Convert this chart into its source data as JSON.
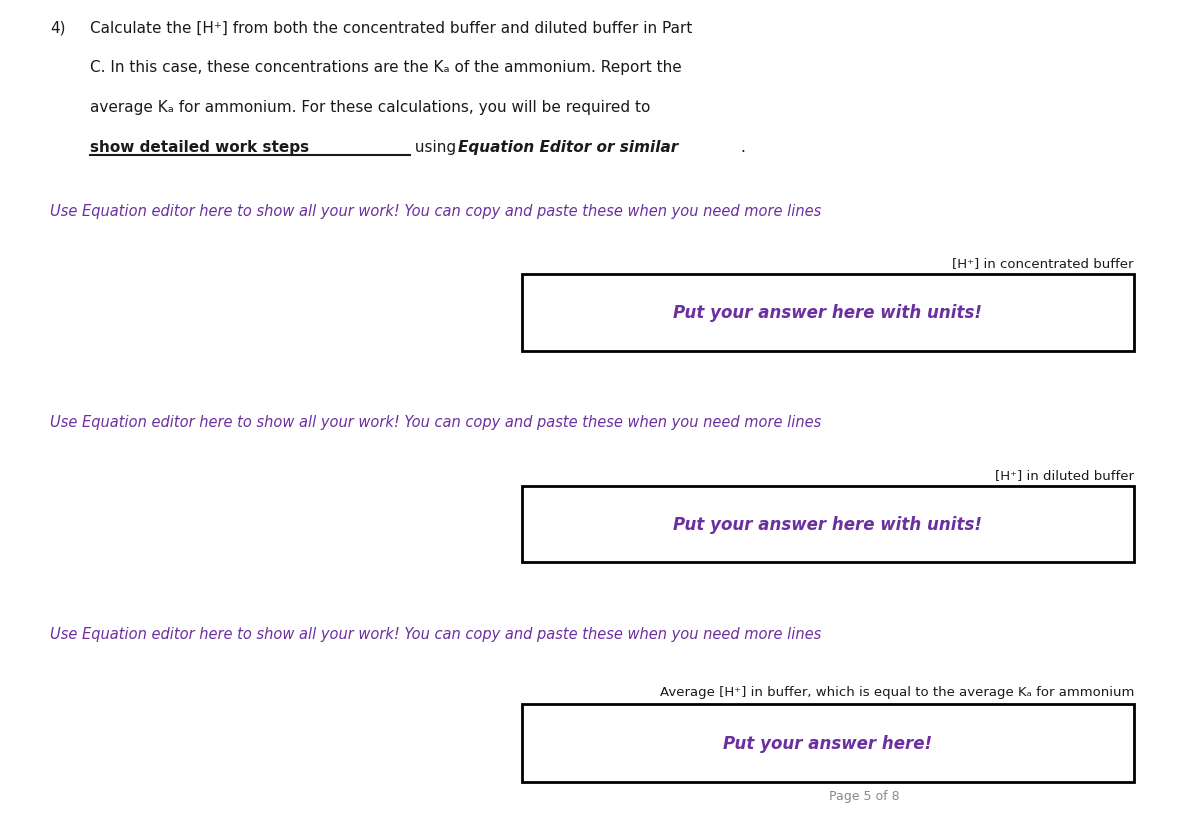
{
  "bg_color": "#ffffff",
  "text_color_black": "#1a1a1a",
  "text_color_purple": "#6b2fa0",
  "text_color_gray": "#888888",
  "header_number": "4)",
  "header_line1": "Calculate the [H⁺] from both the concentrated buffer and diluted buffer in Part",
  "header_line2": "C. In this case, these concentrations are the Kₐ of the ammonium. Report the",
  "header_line3": "average Kₐ for ammonium. For these calculations, you will be required to",
  "header_line4_plain": "show detailed work steps",
  "header_line4_rest": " using ",
  "header_line4_bold_italic": "Equation Editor or similar",
  "header_line4_end": ".",
  "italic_prompt": "Use Equation editor here to show all your work! You can copy and paste these when you need more lines",
  "box1_label": "[H⁺] in concentrated buffer",
  "box1_answer": "Put your answer here with units!",
  "box2_label": "[H⁺] in diluted buffer",
  "box2_answer": "Put your answer here with units!",
  "box3_label": "Average [H⁺] in buffer, which is equal to the average Kₐ for ammonium",
  "box3_answer": "Put your answer here!",
  "page_footer": "Page 5 of 8"
}
